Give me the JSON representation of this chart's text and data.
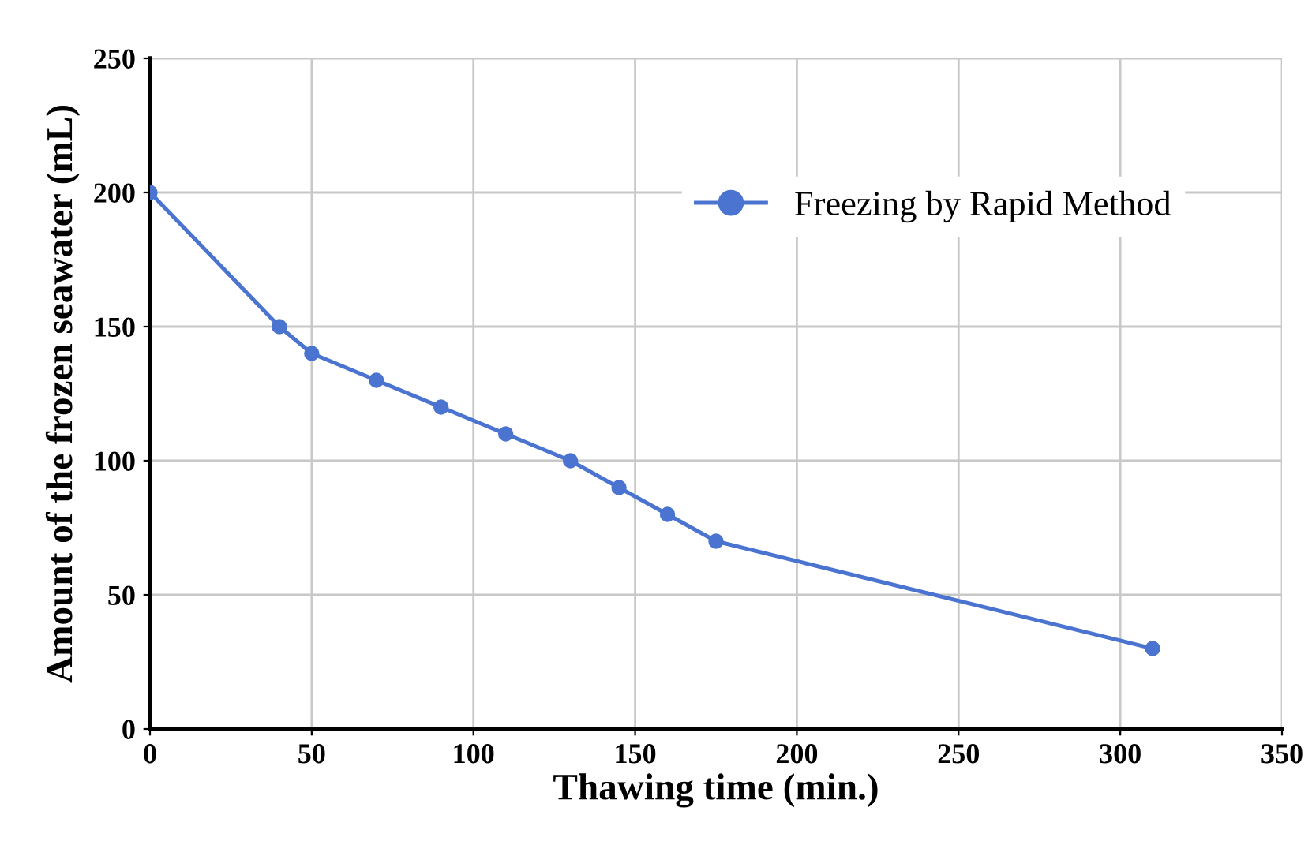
{
  "chart_data": {
    "type": "line",
    "xlabel": "Thawing time (min.)",
    "ylabel": "Amount of the frozen seawater (mL)",
    "x": [
      0,
      40,
      50,
      70,
      90,
      110,
      130,
      145,
      160,
      175,
      310
    ],
    "series": [
      {
        "name": "Freezing by Rapid Method",
        "color": "#4a74d0",
        "values": [
          200,
          150,
          140,
          130,
          120,
          110,
          100,
          90,
          80,
          70,
          30
        ]
      }
    ],
    "xlim": [
      0,
      350
    ],
    "ylim": [
      0,
      250
    ],
    "xticks": [
      0,
      50,
      100,
      150,
      200,
      250,
      300,
      350
    ],
    "yticks": [
      0,
      50,
      100,
      150,
      200,
      250
    ],
    "grid": true,
    "legend": "top right",
    "marker": "circle",
    "line_style": "solid"
  }
}
